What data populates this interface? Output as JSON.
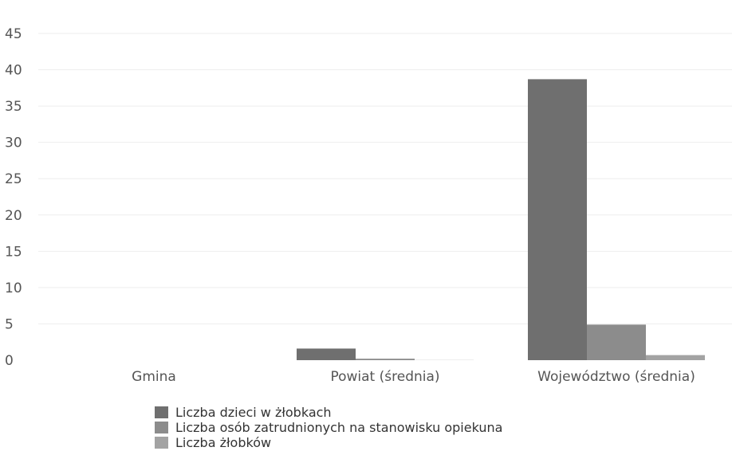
{
  "chart_data": {
    "type": "bar",
    "categories": [
      "Gmina",
      "Powiat (średnia)",
      "Województwo (średnia)"
    ],
    "series": [
      {
        "name": "Liczba dzieci w żłobkach",
        "values": [
          0,
          1.6,
          38.7
        ],
        "color": "#6f6f6f"
      },
      {
        "name": "Liczba osób zatrudnionych na stanowisku opiekuna",
        "values": [
          0,
          0.2,
          4.9
        ],
        "color": "#8c8c8c"
      },
      {
        "name": "Liczba żłobków",
        "values": [
          0,
          0.02,
          0.7
        ],
        "color": "#a3a3a3"
      }
    ],
    "title": "",
    "xlabel": "",
    "ylabel": "",
    "ylim": [
      0,
      45
    ],
    "yticks": [
      "0",
      "5",
      "10",
      "15",
      "20",
      "25",
      "30",
      "35",
      "40",
      "45"
    ],
    "grid": true,
    "legend_position": "bottom-left"
  }
}
